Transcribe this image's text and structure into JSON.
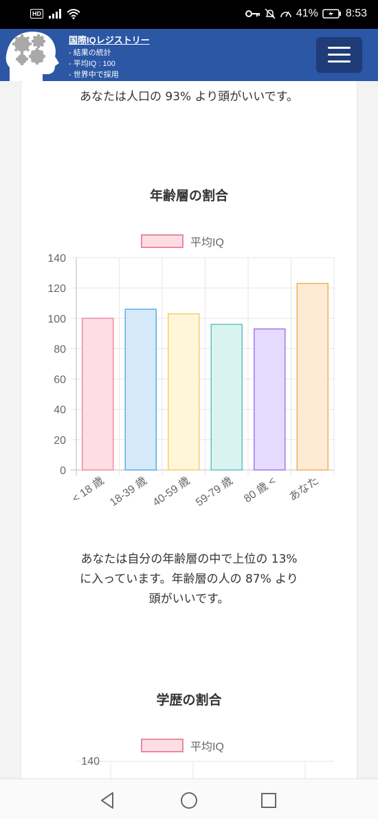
{
  "status_bar": {
    "left_badge": "HD",
    "battery": "41%",
    "time": "8:53"
  },
  "header": {
    "site_title": "国際IQレジストリー",
    "menu_items": [
      "- 結果の統計",
      "- 平均IQ : 100",
      "- 世界中で採用"
    ]
  },
  "content": {
    "result_text": "あなたは人口の 93% より頭がいいです。",
    "age_section_title": "年齢層の割合",
    "age_summary_lines": [
      "あなたは自分の年齢層の中で上位の 13%",
      "に入っています。年齢層の人の 87% より",
      "頭がいいです。"
    ],
    "education_section_title": "学歴の割合"
  },
  "chart_data": [
    {
      "type": "bar",
      "title": "年齢層の割合",
      "legend": "平均IQ",
      "legend_position": "top",
      "categories": [
        "< 18 歳",
        "18-39 歳",
        "40-59 歳",
        "59-79 歳",
        "80 歳 <",
        "あなた"
      ],
      "values": [
        100,
        106,
        103,
        96,
        93,
        123
      ],
      "ylim": [
        0,
        140
      ],
      "yticks": [
        0,
        20,
        40,
        60,
        80,
        100,
        120,
        140
      ],
      "grid": true,
      "colors": {
        "fill": [
          "#ffdde5",
          "#d7eaf9",
          "#fff5d9",
          "#d9f3f2",
          "#e6dcff",
          "#ffead6"
        ],
        "stroke": [
          "#ee8aa0",
          "#5aaee3",
          "#f5cf6a",
          "#5fc4c2",
          "#9e7ae8",
          "#f1b356"
        ]
      }
    },
    {
      "type": "bar",
      "title": "学歴の割合",
      "legend": "平均IQ",
      "legend_position": "top",
      "yticks_visible": [
        140
      ]
    }
  ]
}
